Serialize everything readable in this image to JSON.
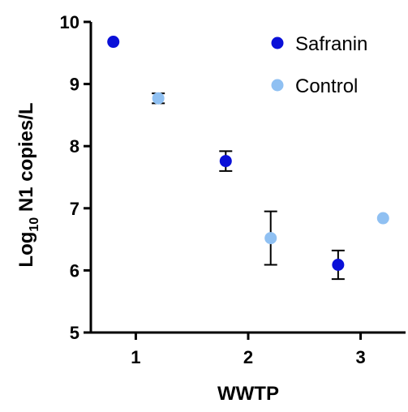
{
  "chart_data": {
    "type": "scatter",
    "title": "",
    "xlabel": "WWTP",
    "ylabel_main": "Log",
    "ylabel_sub": "10",
    "ylabel_rest": " N1 copies/L",
    "xlim": [
      0.6,
      3.4
    ],
    "ylim": [
      5,
      10
    ],
    "x_ticks": [
      "1",
      "2",
      "3"
    ],
    "y_ticks": [
      "5",
      "6",
      "7",
      "8",
      "9",
      "10"
    ],
    "grid": false,
    "legend_position": "top-right",
    "series": [
      {
        "name": "Safranin",
        "color": "#0a10d8",
        "points": [
          {
            "x": 0.8,
            "y": 9.68,
            "err_low": 0,
            "err_high": 0
          },
          {
            "x": 1.8,
            "y": 7.76,
            "err_low": 0.16,
            "err_high": 0.16
          },
          {
            "x": 2.8,
            "y": 6.09,
            "err_low": 0.23,
            "err_high": 0.23
          }
        ]
      },
      {
        "name": "Control",
        "color": "#8fc0f2",
        "points": [
          {
            "x": 1.2,
            "y": 8.77,
            "err_low": 0.08,
            "err_high": 0.08
          },
          {
            "x": 2.2,
            "y": 6.52,
            "err_low": 0.43,
            "err_high": 0.43
          },
          {
            "x": 3.2,
            "y": 6.84,
            "err_low": 0,
            "err_high": 0
          }
        ]
      }
    ]
  }
}
